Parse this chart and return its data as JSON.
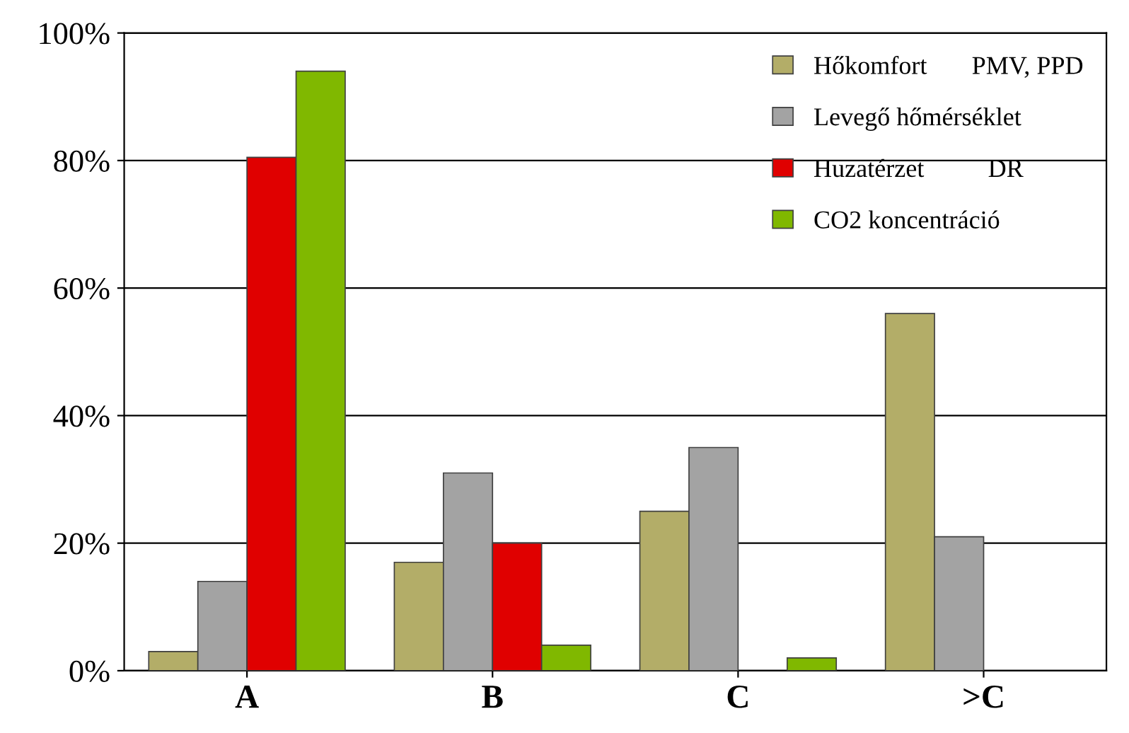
{
  "chart_data": {
    "type": "bar",
    "categories": [
      "A",
      "B",
      "C",
      ">C"
    ],
    "series": [
      {
        "name": "Hőkomfort       PMV, PPD",
        "color": "#b3ad68",
        "values": [
          3,
          17,
          25,
          56
        ]
      },
      {
        "name": "Levegő hőmérséklet",
        "color": "#a3a3a3",
        "values": [
          14,
          31,
          35,
          21
        ]
      },
      {
        "name": "Huzatérzet          DR",
        "color": "#e00000",
        "values": [
          80.5,
          20,
          null,
          null
        ]
      },
      {
        "name": "CO2 koncentráció",
        "color": "#80b800",
        "values": [
          94,
          4,
          2,
          null
        ]
      }
    ],
    "ylim": [
      0,
      100
    ],
    "yticks": [
      {
        "value": 0,
        "label": "0%"
      },
      {
        "value": 20,
        "label": "20%"
      },
      {
        "value": 40,
        "label": "40%"
      },
      {
        "value": 60,
        "label": "60%"
      },
      {
        "value": 80,
        "label": "80%"
      },
      {
        "value": 100,
        "label": "100%"
      }
    ],
    "grid": "y",
    "legend": "top right"
  }
}
